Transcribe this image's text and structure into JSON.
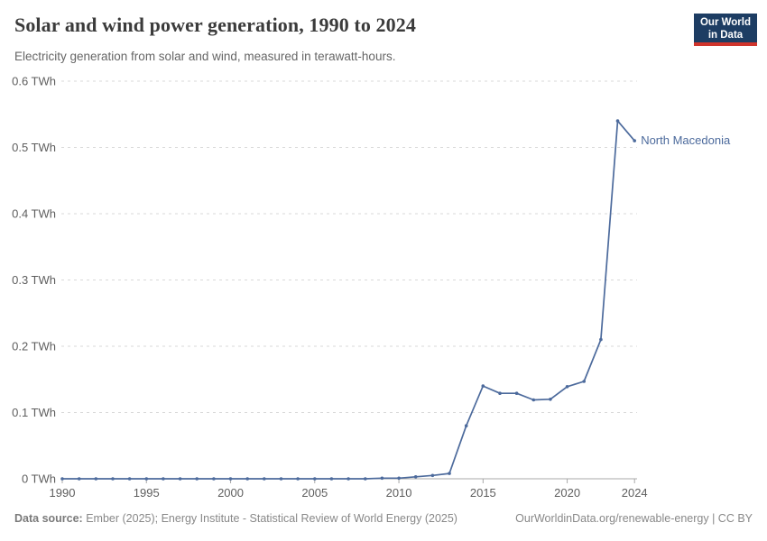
{
  "header": {
    "title": "Solar and wind power generation, 1990 to 2024",
    "subtitle": "Electricity generation from solar and wind, measured in terawatt-hours.",
    "logo": {
      "line1": "Our World",
      "line2": "in Data"
    }
  },
  "chart_data": {
    "type": "line",
    "title": "Solar and wind power generation, 1990 to 2024",
    "ylabel": "",
    "xlabel": "",
    "unit": "TWh",
    "ylim": [
      0,
      0.6
    ],
    "grid": "dashed-horizontal",
    "legend_position": "end-of-line-label",
    "x": [
      1990,
      1991,
      1992,
      1993,
      1994,
      1995,
      1996,
      1997,
      1998,
      1999,
      2000,
      2001,
      2002,
      2003,
      2004,
      2005,
      2006,
      2007,
      2008,
      2009,
      2010,
      2011,
      2012,
      2013,
      2014,
      2015,
      2016,
      2017,
      2018,
      2019,
      2020,
      2021,
      2022,
      2023,
      2024
    ],
    "series": [
      {
        "name": "North Macedonia",
        "color": "#4c6a9c",
        "values": [
          0,
          0,
          0,
          0,
          0,
          0,
          0,
          0,
          0,
          0,
          0,
          0,
          0,
          0,
          0,
          0,
          0,
          0,
          0,
          0.001,
          0.001,
          0.003,
          0.005,
          0.008,
          0.08,
          0.14,
          0.129,
          0.129,
          0.119,
          0.12,
          0.139,
          0.147,
          0.21,
          0.54,
          0.51
        ]
      }
    ],
    "y_ticks": [
      {
        "value": 0,
        "label": "0 TWh"
      },
      {
        "value": 0.1,
        "label": "0.1 TWh"
      },
      {
        "value": 0.2,
        "label": "0.2 TWh"
      },
      {
        "value": 0.3,
        "label": "0.3 TWh"
      },
      {
        "value": 0.4,
        "label": "0.4 TWh"
      },
      {
        "value": 0.5,
        "label": "0.5 TWh"
      },
      {
        "value": 0.6,
        "label": "0.6 TWh"
      }
    ],
    "x_ticks": [
      1990,
      1995,
      2000,
      2005,
      2010,
      2015,
      2020,
      2024
    ]
  },
  "footer": {
    "source_label": "Data source:",
    "source_text": " Ember (2025); Energy Institute - Statistical Review of World Energy (2025)",
    "link_text": "OurWorldinData.org/renewable-energy | CC BY"
  },
  "colors": {
    "line": "#4c6a9c",
    "gridline": "#d9d9d9",
    "axis": "#a8a8a8",
    "tick_text": "#5e5e5e",
    "title_text": "#3b3b3b",
    "logo_bg": "#1d3d63",
    "logo_accent": "#d0342c"
  }
}
